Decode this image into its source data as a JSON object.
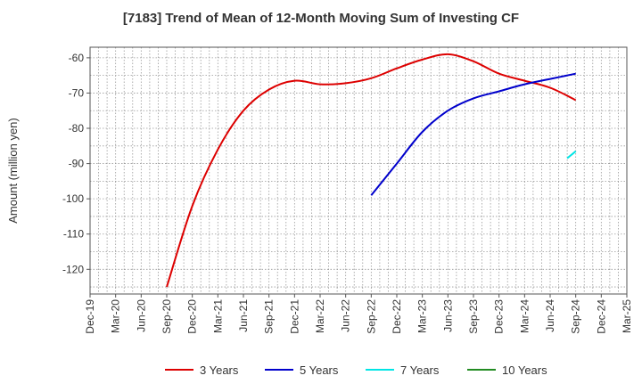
{
  "chart_data": {
    "type": "line",
    "title": "[7183]  Trend of Mean of 12-Month Moving Sum of Investing CF",
    "xlabel": "",
    "ylabel": "Amount (million yen)",
    "x_ticks": [
      "Dec-19",
      "Mar-20",
      "Jun-20",
      "Sep-20",
      "Dec-20",
      "Mar-21",
      "Jun-21",
      "Sep-21",
      "Dec-21",
      "Mar-22",
      "Jun-22",
      "Sep-22",
      "Dec-22",
      "Mar-23",
      "Jun-23",
      "Sep-23",
      "Dec-23",
      "Mar-24",
      "Jun-24",
      "Sep-24",
      "Dec-24",
      "Mar-25"
    ],
    "y_ticks": [
      -120,
      -110,
      -100,
      -90,
      -80,
      -70,
      -60
    ],
    "ylim": [
      -127,
      -57
    ],
    "grid": true,
    "legend_position": "bottom",
    "series": [
      {
        "name": "3 Years",
        "color": "#dd0000",
        "points": [
          [
            "Sep-20",
            -125
          ],
          [
            "Dec-20",
            -102
          ],
          [
            "Mar-21",
            -86
          ],
          [
            "Jun-21",
            -75
          ],
          [
            "Sep-21",
            -69
          ],
          [
            "Dec-21",
            -66.5
          ],
          [
            "Mar-22",
            -67.5
          ],
          [
            "Jun-22",
            -67.2
          ],
          [
            "Sep-22",
            -65.8
          ],
          [
            "Dec-22",
            -63
          ],
          [
            "Mar-23",
            -60.5
          ],
          [
            "Jun-23",
            -59
          ],
          [
            "Sep-23",
            -61
          ],
          [
            "Dec-23",
            -64.5
          ],
          [
            "Mar-24",
            -66.5
          ],
          [
            "Jun-24",
            -68.5
          ],
          [
            "Sep-24",
            -72
          ]
        ]
      },
      {
        "name": "5 Years",
        "color": "#0000cc",
        "points": [
          [
            "Sep-22",
            -99
          ],
          [
            "Dec-22",
            -90
          ],
          [
            "Mar-23",
            -81
          ],
          [
            "Jun-23",
            -75
          ],
          [
            "Sep-23",
            -71.5
          ],
          [
            "Dec-23",
            -69.5
          ],
          [
            "Mar-24",
            -67.5
          ],
          [
            "Jun-24",
            -66
          ],
          [
            "Sep-24",
            -64.5
          ]
        ]
      },
      {
        "name": "7 Years",
        "color": "#00e5e5",
        "points": [
          [
            "Aug-24",
            -88.5
          ],
          [
            "Sep-24",
            -86.5
          ]
        ]
      },
      {
        "name": "10 Years",
        "color": "#228b22",
        "points": []
      }
    ]
  }
}
